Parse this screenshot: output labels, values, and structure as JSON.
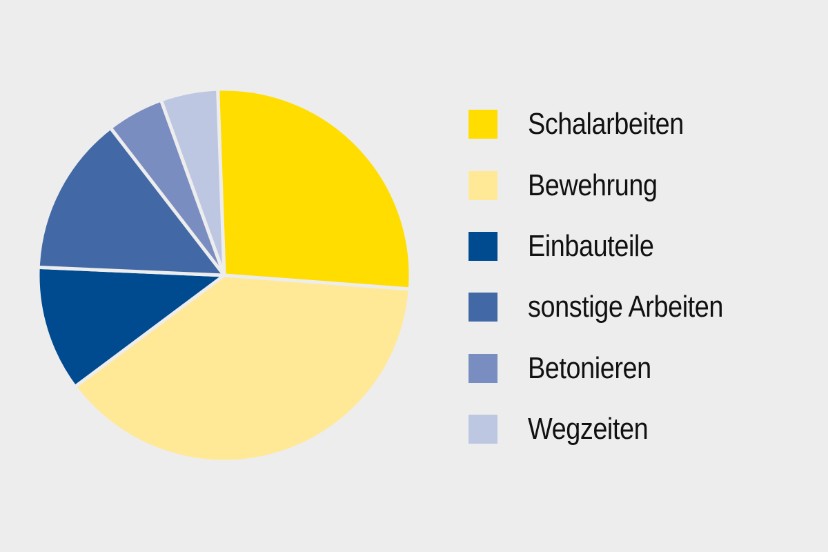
{
  "chart_data": {
    "type": "pie",
    "title": "",
    "start_angle_deg": -2,
    "direction": "clockwise",
    "slices": [
      {
        "label": "Schalarbeiten",
        "value": 27,
        "color": "#ffdd00"
      },
      {
        "label": "Bewehrung",
        "value": 39,
        "color": "#ffe996"
      },
      {
        "label": "Einbauteile",
        "value": 11,
        "color": "#004a8f"
      },
      {
        "label": "sonstige Arbeiten",
        "value": 14,
        "color": "#4268a5"
      },
      {
        "label": "Betonieren",
        "value": 5,
        "color": "#7a8dc0"
      },
      {
        "label": "Wegzeiten",
        "value": 5,
        "color": "#bec7e2"
      }
    ],
    "legend": {
      "position": "right"
    },
    "background": "#ededed",
    "slice_separator_color": "#ededed"
  },
  "legend": {
    "items": [
      {
        "label": "Schalarbeiten",
        "color": "#ffdd00"
      },
      {
        "label": "Bewehrung",
        "color": "#ffe996"
      },
      {
        "label": "Einbauteile",
        "color": "#004a8f"
      },
      {
        "label": "sonstige Arbeiten",
        "color": "#4268a5"
      },
      {
        "label": "Betonieren",
        "color": "#7a8dc0"
      },
      {
        "label": "Wegzeiten",
        "color": "#bec7e2"
      }
    ]
  }
}
